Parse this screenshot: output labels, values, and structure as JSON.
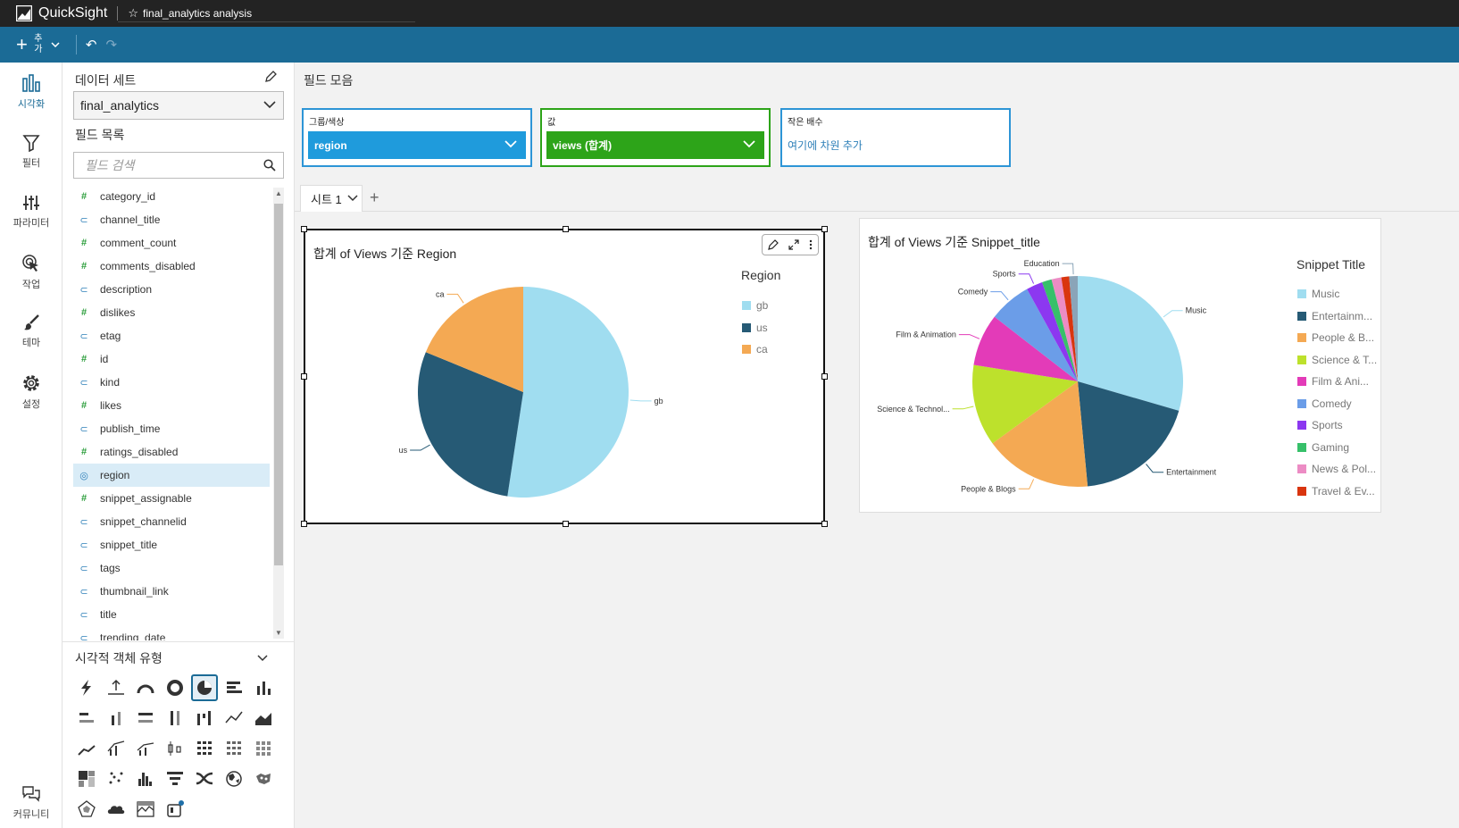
{
  "app": {
    "brand": "QuickSight",
    "analysis_name": "final_analytics analysis"
  },
  "toolbar": {
    "add_label": "추가"
  },
  "nav": {
    "visualize": "시각화",
    "filter": "필터",
    "parameters": "파라미터",
    "actions": "작업",
    "themes": "테마",
    "settings": "설정",
    "community": "커뮤니티"
  },
  "field_panel": {
    "dataset_title": "데이터 세트",
    "dataset_value": "final_analytics",
    "field_list_title": "필드 목록",
    "search_placeholder": "필드 검색",
    "fields": [
      {
        "name": "category_id",
        "type": "#"
      },
      {
        "name": "channel_title",
        "type": "⊂"
      },
      {
        "name": "comment_count",
        "type": "#"
      },
      {
        "name": "comments_disabled",
        "type": "#"
      },
      {
        "name": "description",
        "type": "⊂"
      },
      {
        "name": "dislikes",
        "type": "#"
      },
      {
        "name": "etag",
        "type": "⊂"
      },
      {
        "name": "id",
        "type": "#"
      },
      {
        "name": "kind",
        "type": "⊂"
      },
      {
        "name": "likes",
        "type": "#"
      },
      {
        "name": "publish_time",
        "type": "⊂"
      },
      {
        "name": "ratings_disabled",
        "type": "#"
      },
      {
        "name": "region",
        "type": "◎"
      },
      {
        "name": "snippet_assignable",
        "type": "#"
      },
      {
        "name": "snippet_channelid",
        "type": "⊂"
      },
      {
        "name": "snippet_title",
        "type": "⊂"
      },
      {
        "name": "tags",
        "type": "⊂"
      },
      {
        "name": "thumbnail_link",
        "type": "⊂"
      },
      {
        "name": "title",
        "type": "⊂"
      },
      {
        "name": "trending_date",
        "type": "⊂"
      }
    ],
    "selected_field": "region"
  },
  "visual_types": {
    "title": "시각적 객체 유형"
  },
  "field_wells": {
    "title": "필드 모음",
    "group_label": "그룹/색상",
    "group_value": "region",
    "value_label": "값",
    "value_value": "views (합계)",
    "small_multiples_label": "작은 배수",
    "small_multiples_hint": "여기에 차원 추가"
  },
  "sheet": {
    "tab_label": "시트 1"
  },
  "chart_data": [
    {
      "type": "pie",
      "title": "합계 of Views 기준 Region",
      "legend_title": "Region",
      "legend_position": "right",
      "categories": [
        "gb",
        "us",
        "ca"
      ],
      "values": [
        52.4,
        28.8,
        18.8
      ],
      "colors": [
        "#a0ddf0",
        "#265a75",
        "#f4a953"
      ]
    },
    {
      "type": "pie",
      "title": "합계 of Views 기준 Snippet_title",
      "legend_title": "Snippet Title",
      "legend_position": "right",
      "categories": [
        "Music",
        "Entertainment",
        "People & Blogs",
        "Science & Technology",
        "Film & Animation",
        "Comedy",
        "Sports",
        "Gaming",
        "News & Politics",
        "Travel & Events",
        "Education"
      ],
      "slice_labels": [
        "Music",
        "Entertainment",
        "People & Blogs",
        "Science & Technol...",
        "Film & Animation",
        "Comedy",
        "Sports",
        "",
        "",
        "",
        "Education"
      ],
      "legend_labels": [
        "Music",
        "Entertainm...",
        "People & B...",
        "Science & T...",
        "Film & Ani...",
        "Comedy",
        "Sports",
        "Gaming",
        "News & Pol...",
        "Travel & Ev...",
        ""
      ],
      "values": [
        29.5,
        19.0,
        16.5,
        12.5,
        8.0,
        6.5,
        2.5,
        1.5,
        1.5,
        1.2,
        1.3
      ],
      "colors": [
        "#a0ddf0",
        "#265a75",
        "#f4a953",
        "#bde12c",
        "#e33bb8",
        "#6b9de8",
        "#8c38f0",
        "#37c06a",
        "#ec8cc4",
        "#d9350f",
        "#8aa4b8"
      ]
    }
  ]
}
